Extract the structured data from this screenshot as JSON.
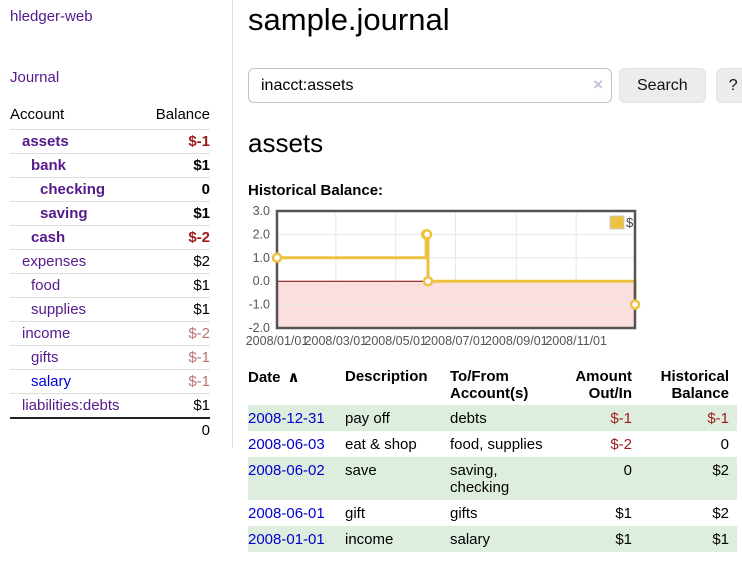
{
  "colors": {
    "link_purple": "#551a8b",
    "link_blue": "#0000cc",
    "negative_strong": "#9d1a1a",
    "negative_soft": "#ba7474",
    "row_stripe_green": "#deeede",
    "chart_line_gold": "#edc240",
    "chart_negative_region": "#fbdede",
    "chart_zero_line": "#7f0000",
    "chart_grid": "#e8e8e8",
    "chart_border": "#545454"
  },
  "sidebar": {
    "app_title": "hledger-web",
    "nav_journal": "Journal",
    "accounts_table": {
      "headers": {
        "account": "Account",
        "balance": "Balance"
      },
      "rows": [
        {
          "account": "assets",
          "balance": "$-1",
          "level": 1,
          "bold": true,
          "balance_style": "negative-strong",
          "link_color": "purple"
        },
        {
          "account": "bank",
          "balance": "$1",
          "level": 2,
          "bold": true,
          "balance_style": "normal",
          "link_color": "purple"
        },
        {
          "account": "checking",
          "balance": "0",
          "level": 3,
          "bold": true,
          "balance_style": "normal",
          "link_color": "purple"
        },
        {
          "account": "saving",
          "balance": "$1",
          "level": 3,
          "bold": true,
          "balance_style": "normal",
          "link_color": "purple"
        },
        {
          "account": "cash",
          "balance": "$-2",
          "level": 2,
          "bold": true,
          "balance_style": "negative-strong",
          "link_color": "purple"
        },
        {
          "account": "expenses",
          "balance": "$2",
          "level": 1,
          "bold": false,
          "balance_style": "normal",
          "link_color": "purple"
        },
        {
          "account": "food",
          "balance": "$1",
          "level": 2,
          "bold": false,
          "balance_style": "normal",
          "link_color": "purple"
        },
        {
          "account": "supplies",
          "balance": "$1",
          "level": 2,
          "bold": false,
          "balance_style": "normal",
          "link_color": "purple"
        },
        {
          "account": "income",
          "balance": "$-2",
          "level": 1,
          "bold": false,
          "balance_style": "negative-soft",
          "link_color": "purple"
        },
        {
          "account": "gifts",
          "balance": "$-1",
          "level": 2,
          "bold": false,
          "balance_style": "negative-soft",
          "link_color": "purple"
        },
        {
          "account": "salary",
          "balance": "$-1",
          "level": 2,
          "bold": false,
          "balance_style": "negative-soft",
          "link_color": "blue"
        },
        {
          "account": "liabilities:debts",
          "balance": "$1",
          "level": 1,
          "bold": false,
          "balance_style": "normal",
          "link_color": "purple"
        }
      ],
      "total": "0"
    }
  },
  "main": {
    "title": "sample.journal",
    "search": {
      "value": "inacct:assets",
      "clear_icon": "×",
      "button_label": "Search",
      "help_label": "?"
    },
    "account_heading": "assets",
    "chart_title": "Historical Balance:"
  },
  "chart_data": {
    "type": "line",
    "step": true,
    "title": "Historical Balance",
    "x_range": [
      "2008-01-01",
      "2008-12-31"
    ],
    "ylim": [
      -2,
      3
    ],
    "y_ticks": [
      "3.0",
      "2.0",
      "1.0",
      "0.0",
      "-1.0",
      "-2.0"
    ],
    "x_ticks": [
      "2008/01/01",
      "2008/03/01",
      "2008/05/01",
      "2008/07/01",
      "2008/09/01",
      "2008/11/01"
    ],
    "grid": true,
    "legend": {
      "label": "$",
      "position": "top-right"
    },
    "series": [
      {
        "name": "$",
        "color": "#edc240",
        "points": [
          [
            "2008-01-01",
            1
          ],
          [
            "2008-06-01",
            2
          ],
          [
            "2008-06-02",
            2
          ],
          [
            "2008-06-03",
            0
          ],
          [
            "2008-12-31",
            -1
          ]
        ]
      }
    ]
  },
  "register": {
    "headers": {
      "date": "Date",
      "sort_caret": "∧",
      "description": "Description",
      "accounts": "To/From Account(s)",
      "amount": "Amount Out/In",
      "balance": "Historical Balance"
    },
    "rows": [
      {
        "date": "2008-12-31",
        "description": "pay off",
        "accounts": "debts",
        "amount": "$-1",
        "balance": "$-1",
        "amount_style": "negative-strong",
        "balance_style": "negative-strong"
      },
      {
        "date": "2008-06-03",
        "description": "eat & shop",
        "accounts": "food, supplies",
        "amount": "$-2",
        "balance": "0",
        "amount_style": "negative-strong",
        "balance_style": "normal"
      },
      {
        "date": "2008-06-02",
        "description": "save",
        "accounts": "saving, checking",
        "amount": "0",
        "balance": "$2",
        "amount_style": "normal",
        "balance_style": "normal"
      },
      {
        "date": "2008-06-01",
        "description": "gift",
        "accounts": "gifts",
        "amount": "$1",
        "balance": "$2",
        "amount_style": "normal",
        "balance_style": "normal"
      },
      {
        "date": "2008-01-01",
        "description": "income",
        "accounts": "salary",
        "amount": "$1",
        "balance": "$1",
        "amount_style": "normal",
        "balance_style": "normal"
      }
    ]
  }
}
